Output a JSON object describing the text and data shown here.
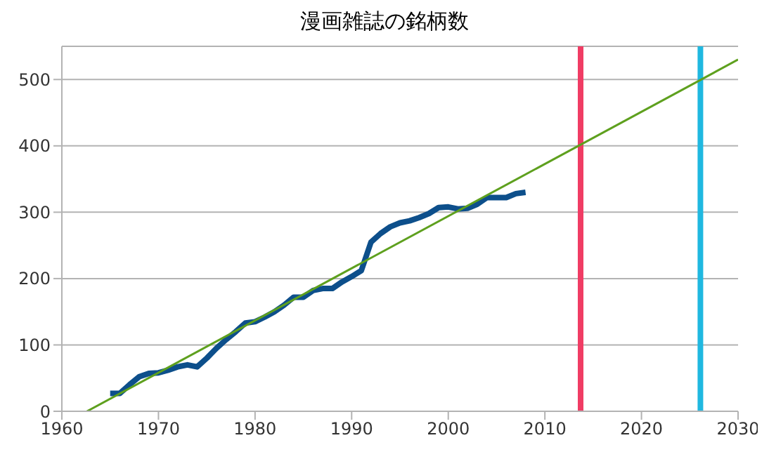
{
  "chart_data": {
    "type": "line",
    "title": "漫画雑誌の銘柄数",
    "xlim": [
      1960,
      2030
    ],
    "xticks": [
      1960,
      1970,
      1980,
      1990,
      2000,
      2010,
      2020,
      2030
    ],
    "ylim": [
      0,
      550
    ],
    "yticks": [
      0,
      100,
      200,
      300,
      400,
      500
    ],
    "grid": "y",
    "marker": "none",
    "line_style": "solid",
    "series": [
      {
        "color": "#0d4f8b",
        "x": [
          1965,
          1966,
          1967,
          1968,
          1969,
          1970,
          1971,
          1972,
          1973,
          1974,
          1975,
          1976,
          1977,
          1978,
          1979,
          1980,
          1981,
          1982,
          1983,
          1984,
          1985,
          1986,
          1987,
          1988,
          1989,
          1990,
          1991,
          1992,
          1993,
          1994,
          1995,
          1996,
          1997,
          1998,
          1999,
          2000,
          2001,
          2002,
          2003,
          2004,
          2005,
          2006,
          2007,
          2008
        ],
        "values": [
          27,
          27,
          40,
          52,
          57,
          58,
          62,
          67,
          70,
          67,
          80,
          95,
          108,
          120,
          133,
          135,
          142,
          150,
          160,
          172,
          172,
          182,
          185,
          185,
          195,
          203,
          212,
          255,
          268,
          278,
          284,
          287,
          292,
          298,
          307,
          308,
          305,
          306,
          312,
          322,
          322,
          322,
          328,
          330
        ]
      },
      {
        "color": "#5ea01e",
        "x": [
          1962.6,
          2030
        ],
        "values": [
          0,
          530
        ]
      }
    ],
    "ref_lines": [
      {
        "axis": "x",
        "value": 2013.7,
        "color": "#f03c64"
      },
      {
        "axis": "x",
        "value": 2026.1,
        "color": "#20b8e0"
      }
    ]
  }
}
